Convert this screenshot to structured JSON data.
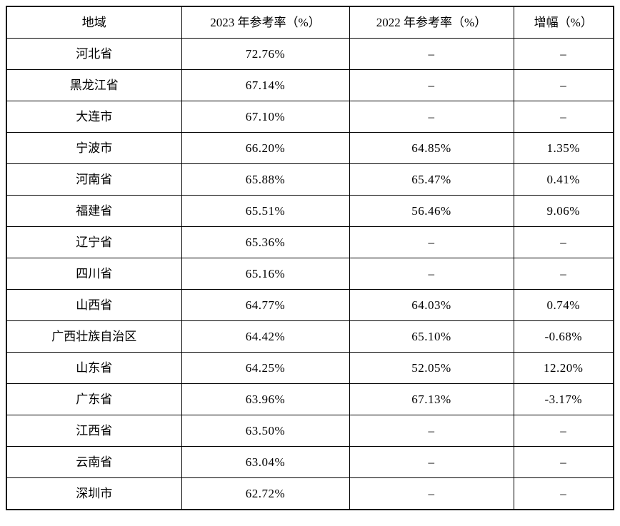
{
  "page": {
    "background_color": "#ffffff",
    "text_color": "#000000",
    "border_color": "#000000"
  },
  "chart_data": {
    "type": "table",
    "title": "",
    "columns": [
      "地域",
      "2023 年参考率（%）",
      "2022 年参考率（%）",
      "增幅（%）"
    ],
    "rows": [
      [
        "河北省",
        "72.76%",
        "–",
        "–"
      ],
      [
        "黑龙江省",
        "67.14%",
        "–",
        "–"
      ],
      [
        "大连市",
        "67.10%",
        "–",
        "–"
      ],
      [
        "宁波市",
        "66.20%",
        "64.85%",
        "1.35%"
      ],
      [
        "河南省",
        "65.88%",
        "65.47%",
        "0.41%"
      ],
      [
        "福建省",
        "65.51%",
        "56.46%",
        "9.06%"
      ],
      [
        "辽宁省",
        "65.36%",
        "–",
        "–"
      ],
      [
        "四川省",
        "65.16%",
        "–",
        "–"
      ],
      [
        "山西省",
        "64.77%",
        "64.03%",
        "0.74%"
      ],
      [
        "广西壮族自治区",
        "64.42%",
        "65.10%",
        "-0.68%"
      ],
      [
        "山东省",
        "64.25%",
        "52.05%",
        "12.20%"
      ],
      [
        "广东省",
        "63.96%",
        "67.13%",
        "-3.17%"
      ],
      [
        "江西省",
        "63.50%",
        "–",
        "–"
      ],
      [
        "云南省",
        "63.04%",
        "–",
        "–"
      ],
      [
        "深圳市",
        "62.72%",
        "–",
        "–"
      ]
    ],
    "layout": {
      "grid": true,
      "header_row": true,
      "cell_alignment": "center"
    }
  }
}
